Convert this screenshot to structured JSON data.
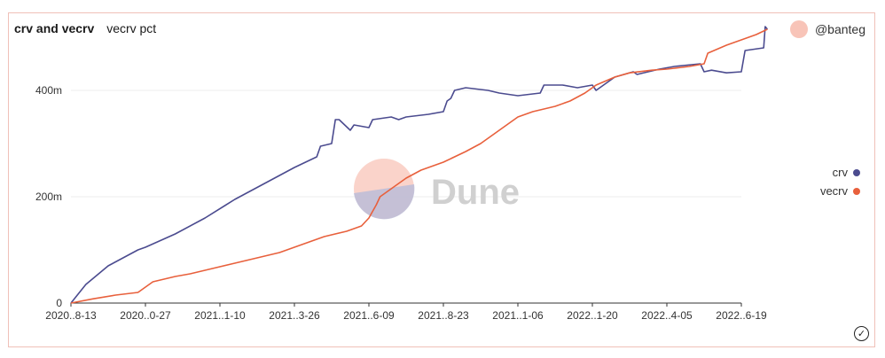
{
  "header": {
    "title": "crv and vecrv",
    "subtitle": "vecrv pct"
  },
  "author": {
    "name": "@banteg"
  },
  "watermark": {
    "text": "Dune"
  },
  "colors": {
    "crv": "#4b4b8f",
    "vecrv": "#e8603c",
    "grid": "#eeeeee",
    "avatar": "#f8c4b8"
  },
  "icons": {
    "status": "check-circle-icon"
  },
  "chart_data": {
    "type": "line",
    "title": "crv and vecrv",
    "subtitle": "vecrv pct",
    "x_tick_labels": [
      "2020..8-13",
      "2020..0-27",
      "2021..1-10",
      "2021..3-26",
      "2021..6-09",
      "2021..8-23",
      "2021..1-06",
      "2022..1-20",
      "2022..4-05",
      "2022..6-19"
    ],
    "y_tick_labels": [
      "0",
      "200m",
      "400m"
    ],
    "y_ticks": [
      0,
      200,
      400
    ],
    "ylim": [
      0,
      520
    ],
    "y_unit": "m",
    "grid": true,
    "legend_position": "right",
    "series": [
      {
        "name": "crv",
        "color": "#4b4b8f",
        "points": [
          [
            0,
            0
          ],
          [
            0.2,
            35
          ],
          [
            0.5,
            70
          ],
          [
            0.9,
            100
          ],
          [
            1.0,
            105
          ],
          [
            1.4,
            130
          ],
          [
            1.8,
            160
          ],
          [
            2.2,
            195
          ],
          [
            2.6,
            225
          ],
          [
            3.0,
            255
          ],
          [
            3.3,
            275
          ],
          [
            3.35,
            295
          ],
          [
            3.5,
            300
          ],
          [
            3.55,
            345
          ],
          [
            3.6,
            345
          ],
          [
            3.75,
            325
          ],
          [
            3.8,
            335
          ],
          [
            4.0,
            330
          ],
          [
            4.05,
            345
          ],
          [
            4.3,
            350
          ],
          [
            4.4,
            345
          ],
          [
            4.5,
            350
          ],
          [
            4.8,
            355
          ],
          [
            5.0,
            360
          ],
          [
            5.05,
            380
          ],
          [
            5.1,
            385
          ],
          [
            5.15,
            400
          ],
          [
            5.3,
            405
          ],
          [
            5.6,
            400
          ],
          [
            5.75,
            395
          ],
          [
            6.0,
            390
          ],
          [
            6.3,
            395
          ],
          [
            6.35,
            410
          ],
          [
            6.6,
            410
          ],
          [
            6.8,
            405
          ],
          [
            7.0,
            410
          ],
          [
            7.05,
            400
          ],
          [
            7.3,
            425
          ],
          [
            7.55,
            435
          ],
          [
            7.6,
            430
          ],
          [
            7.9,
            440
          ],
          [
            8.1,
            445
          ],
          [
            8.45,
            450
          ],
          [
            8.5,
            435
          ],
          [
            8.6,
            438
          ],
          [
            8.8,
            433
          ],
          [
            9.0,
            435
          ],
          [
            9.05,
            475
          ],
          [
            9.3,
            480
          ],
          [
            9.32,
            520
          ],
          [
            9.35,
            515
          ]
        ]
      },
      {
        "name": "vecrv",
        "color": "#e8603c",
        "points": [
          [
            0,
            0
          ],
          [
            0.3,
            8
          ],
          [
            0.6,
            15
          ],
          [
            0.9,
            20
          ],
          [
            1.1,
            40
          ],
          [
            1.4,
            50
          ],
          [
            1.6,
            55
          ],
          [
            1.9,
            65
          ],
          [
            2.2,
            75
          ],
          [
            2.5,
            85
          ],
          [
            2.8,
            95
          ],
          [
            3.1,
            110
          ],
          [
            3.4,
            125
          ],
          [
            3.7,
            135
          ],
          [
            3.9,
            145
          ],
          [
            4.0,
            160
          ],
          [
            4.1,
            185
          ],
          [
            4.15,
            200
          ],
          [
            4.3,
            215
          ],
          [
            4.5,
            235
          ],
          [
            4.7,
            250
          ],
          [
            5.0,
            265
          ],
          [
            5.3,
            285
          ],
          [
            5.5,
            300
          ],
          [
            5.8,
            330
          ],
          [
            6.0,
            350
          ],
          [
            6.2,
            360
          ],
          [
            6.5,
            370
          ],
          [
            6.7,
            380
          ],
          [
            6.9,
            395
          ],
          [
            7.05,
            410
          ],
          [
            7.3,
            425
          ],
          [
            7.5,
            433
          ],
          [
            7.8,
            438
          ],
          [
            8.0,
            440
          ],
          [
            8.3,
            445
          ],
          [
            8.5,
            450
          ],
          [
            8.55,
            470
          ],
          [
            8.8,
            485
          ],
          [
            9.0,
            495
          ],
          [
            9.2,
            505
          ],
          [
            9.35,
            515
          ]
        ]
      }
    ]
  }
}
